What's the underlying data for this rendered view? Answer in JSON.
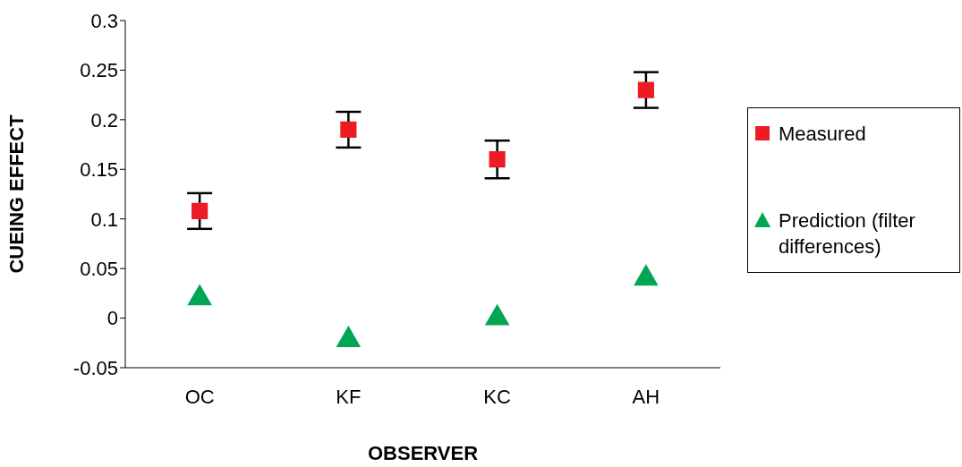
{
  "chart_data": {
    "type": "scatter",
    "xlabel": "OBSERVER",
    "ylabel": "CUEING EFFECT",
    "categories": [
      "OC",
      "KF",
      "KC",
      "AH"
    ],
    "series": [
      {
        "name": "Measured",
        "color": "#ed1c24",
        "marker": "square",
        "values": [
          0.108,
          0.19,
          0.16,
          0.23
        ],
        "errors": [
          0.018,
          0.018,
          0.019,
          0.018
        ]
      },
      {
        "name": "Prediction (filter differences)",
        "color": "#00a651",
        "marker": "triangle",
        "values": [
          0.02,
          -0.022,
          0,
          0.04
        ]
      }
    ],
    "ylim": [
      -0.05,
      0.3
    ],
    "yticks": [
      -0.05,
      0,
      0.05,
      0.1,
      0.15,
      0.2,
      0.25,
      0.3
    ],
    "grid": false,
    "legend": "right"
  }
}
